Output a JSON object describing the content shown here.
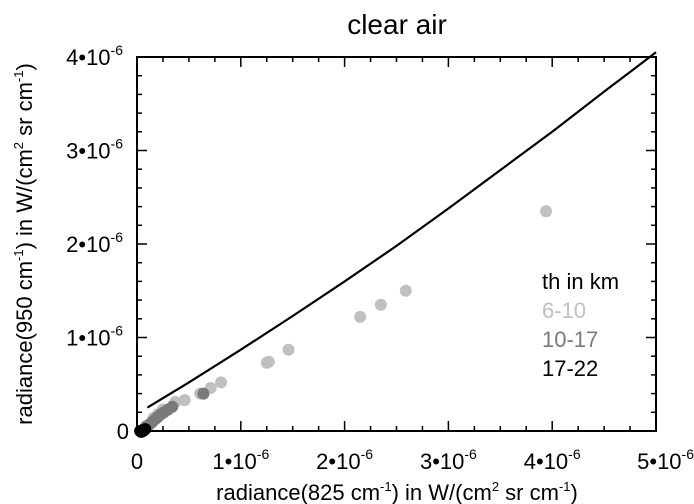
{
  "chart_data": {
    "type": "scatter",
    "title": "clear air",
    "xlabel": {
      "pre": "radiance(825 cm",
      "sup1": "-1",
      "mid": ") in W/(cm",
      "sup2": "2",
      "post": " sr cm",
      "sup3": "-1",
      "end": ")"
    },
    "ylabel": {
      "pre": "radiance(950 cm",
      "sup1": "-1",
      "mid": ") in W/(cm",
      "sup2": "2",
      "post": " sr cm",
      "sup3": "-1",
      "end": ")"
    },
    "xlim": [
      0,
      5e-06
    ],
    "ylim": [
      0,
      4e-06
    ],
    "x_ticks": [
      {
        "value": 0,
        "base": "0",
        "exp": ""
      },
      {
        "value": 1e-06,
        "base": "1•10",
        "exp": "-6"
      },
      {
        "value": 2e-06,
        "base": "2•10",
        "exp": "-6"
      },
      {
        "value": 3e-06,
        "base": "3•10",
        "exp": "-6"
      },
      {
        "value": 4e-06,
        "base": "4•10",
        "exp": "-6"
      },
      {
        "value": 5e-06,
        "base": "5•10",
        "exp": "-6"
      }
    ],
    "y_ticks": [
      {
        "value": 0,
        "base": "0",
        "exp": ""
      },
      {
        "value": 1e-06,
        "base": "1•10",
        "exp": "-6"
      },
      {
        "value": 2e-06,
        "base": "2•10",
        "exp": "-6"
      },
      {
        "value": 3e-06,
        "base": "3•10",
        "exp": "-6"
      },
      {
        "value": 4e-06,
        "base": "4•10",
        "exp": "-6"
      }
    ],
    "legend": {
      "title": "th in km",
      "placement": "right",
      "entries": [
        "6-10",
        "10-17",
        "17-22"
      ]
    },
    "reference_line": {
      "color": "#000000",
      "x": [
        1e-07,
        5e-07,
        1e-06,
        1.5e-06,
        2e-06,
        2.5e-06,
        3e-06,
        3.5e-06,
        4e-06,
        4.5e-06,
        5e-06
      ],
      "y": [
        2.5e-07,
        5.2e-07,
        8.7e-07,
        1.23e-06,
        1.6e-06,
        1.98e-06,
        2.38e-06,
        2.79e-06,
        3.2e-06,
        3.63e-06,
        4.05e-06
      ]
    },
    "series": [
      {
        "name": "6-10",
        "color": "#c0c0c0",
        "x": [
          3.94e-06,
          2.59e-06,
          2.35e-06,
          2.15e-06,
          1.46e-06,
          1.27e-06,
          1.25e-06,
          8.1e-07,
          7.1e-07,
          6.1e-07,
          4.6e-07,
          3.7e-07,
          2.5e-07,
          2e-07,
          1.6e-07
        ],
        "y": [
          2.35e-06,
          1.5e-06,
          1.35e-06,
          1.22e-06,
          8.7e-07,
          7.4e-07,
          7.3e-07,
          5.2e-07,
          4.6e-07,
          4e-07,
          3.3e-07,
          3.1e-07,
          2.3e-07,
          1.8e-07,
          1.4e-07
        ]
      },
      {
        "name": "10-17",
        "color": "#7a7a7a",
        "x": [
          6.4e-07,
          3.4e-07,
          3e-07,
          2.6e-07,
          2.3e-07,
          2e-07,
          1.8e-07,
          1.5e-07,
          1.3e-07,
          1.1e-07,
          9e-08
        ],
        "y": [
          4e-07,
          2.6e-07,
          2.3e-07,
          2e-07,
          1.8e-07,
          1.5e-07,
          1.3e-07,
          1e-07,
          8e-08,
          6e-08,
          5e-08
        ]
      },
      {
        "name": "17-22",
        "color": "#000000",
        "x": [
          8e-08,
          6e-08,
          7e-08,
          5e-08,
          4e-08,
          3e-08
        ],
        "y": [
          2e-08,
          0,
          1e-08,
          1e-08,
          -1e-08,
          0
        ]
      }
    ]
  }
}
